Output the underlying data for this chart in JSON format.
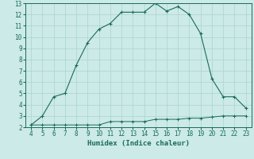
{
  "xlabel": "Humidex (Indice chaleur)",
  "x_values": [
    4,
    5,
    6,
    7,
    8,
    9,
    10,
    11,
    12,
    13,
    14,
    15,
    16,
    17,
    18,
    19,
    20,
    21,
    22,
    23
  ],
  "y_line1": [
    2.2,
    3.0,
    4.7,
    5.0,
    7.5,
    9.5,
    10.7,
    11.2,
    12.2,
    12.2,
    12.2,
    13.0,
    12.3,
    12.7,
    12.0,
    10.3,
    6.3,
    4.7,
    4.7,
    3.7
  ],
  "y_line2": [
    2.2,
    2.2,
    2.2,
    2.2,
    2.2,
    2.2,
    2.2,
    2.5,
    2.5,
    2.5,
    2.5,
    2.7,
    2.7,
    2.7,
    2.8,
    2.8,
    2.9,
    3.0,
    3.0,
    3.0
  ],
  "line_color": "#1a6b5a",
  "background_color": "#cceae7",
  "grid_color": "#aad4ce",
  "ylim": [
    2,
    13
  ],
  "xlim": [
    3.5,
    23.5
  ],
  "yticks": [
    2,
    3,
    4,
    5,
    6,
    7,
    8,
    9,
    10,
    11,
    12,
    13
  ],
  "xticks": [
    4,
    5,
    6,
    7,
    8,
    9,
    10,
    11,
    12,
    13,
    14,
    15,
    16,
    17,
    18,
    19,
    20,
    21,
    22,
    23
  ],
  "tick_fontsize": 5.5,
  "xlabel_fontsize": 6.5
}
